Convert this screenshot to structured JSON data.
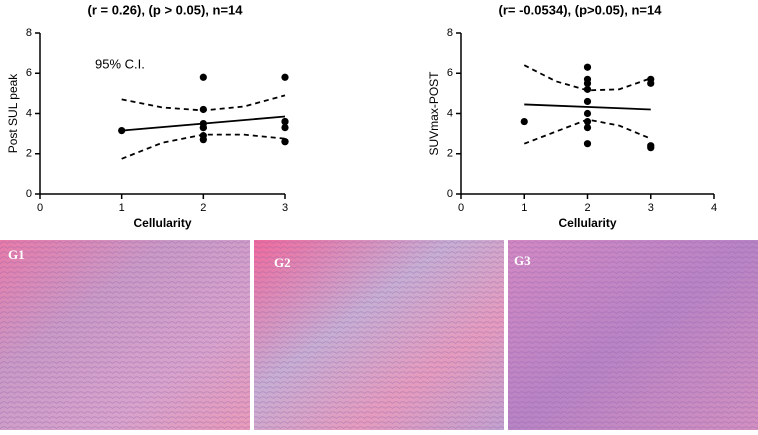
{
  "chart_data": [
    {
      "type": "scatter",
      "title": "(r = 0.26), (p > 0.05), n=14",
      "x_label": "Cellularity",
      "y_label": "Post SUL peak",
      "annotation": "95% C.I.",
      "color": "#000000",
      "xlim": [
        0,
        3
      ],
      "ylim": [
        0,
        8
      ],
      "xticks": [
        0,
        1,
        2,
        3
      ],
      "yticks": [
        0,
        2,
        4,
        6,
        8
      ],
      "x": [
        1,
        2,
        2,
        2,
        2,
        2,
        2,
        2,
        3,
        3,
        3,
        3,
        3,
        3
      ],
      "y": [
        3.15,
        5.8,
        4.2,
        3.5,
        3.3,
        3.3,
        2.9,
        2.7,
        5.8,
        3.6,
        3.6,
        3.3,
        2.6,
        2.6
      ],
      "fit": {
        "x": [
          1,
          3
        ],
        "y": [
          3.15,
          3.85
        ]
      },
      "ci": {
        "x": [
          1,
          1.5,
          2,
          2.5,
          3
        ],
        "upper": [
          4.7,
          4.3,
          4.15,
          4.35,
          4.9
        ],
        "lower": [
          1.75,
          2.55,
          2.95,
          2.95,
          2.75
        ]
      }
    },
    {
      "type": "scatter",
      "title": "(r= -0.0534), (p>0.05), n=14",
      "x_label": "Cellularity",
      "y_label": "SUVmax-POST",
      "color": "#000000",
      "xlim": [
        0,
        4
      ],
      "ylim": [
        0,
        8
      ],
      "xticks": [
        0,
        1,
        2,
        3,
        4
      ],
      "yticks": [
        0,
        2,
        4,
        6,
        8
      ],
      "x": [
        1,
        2,
        2,
        2,
        2,
        2,
        2,
        2,
        2,
        2,
        3,
        3,
        3,
        3
      ],
      "y": [
        3.6,
        6.3,
        5.7,
        5.5,
        5.2,
        4.6,
        4.0,
        3.6,
        3.3,
        2.5,
        5.7,
        5.5,
        2.4,
        2.3
      ],
      "fit": {
        "x": [
          1,
          3
        ],
        "y": [
          4.45,
          4.2
        ]
      },
      "ci": {
        "x": [
          1,
          1.5,
          2,
          2.5,
          3
        ],
        "upper": [
          6.4,
          5.6,
          5.15,
          5.2,
          5.75
        ],
        "lower": [
          2.5,
          3.1,
          3.7,
          3.4,
          2.75
        ]
      }
    }
  ],
  "panels": [
    {
      "label": "G1"
    },
    {
      "label": "G2"
    },
    {
      "label": "G3"
    }
  ]
}
